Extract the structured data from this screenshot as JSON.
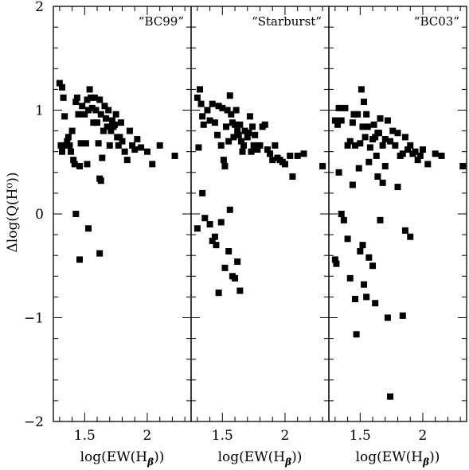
{
  "chart_data": {
    "type": "scatter",
    "layout": "three panels side by side, shared y axis",
    "ylabel": "Δlog(Q(H⁰))",
    "ylim": [
      -2,
      2
    ],
    "yticks": [
      {
        "value": 2,
        "label": "2"
      },
      {
        "value": 1,
        "label": "1"
      },
      {
        "value": 0,
        "label": "0"
      },
      {
        "value": -1,
        "label": "−1"
      },
      {
        "value": -2,
        "label": "−2"
      }
    ],
    "y_minor_step": 0.2,
    "xlabel": {
      "pre": "log(EW(H",
      "sub": "β",
      "post": "))"
    },
    "xlim": [
      1.25,
      2.35
    ],
    "xticks": [
      {
        "value": 1.5,
        "label": "1.5"
      },
      {
        "value": 2,
        "label": "2"
      }
    ],
    "x_minor_step": 0.1,
    "marker": "filled-square",
    "grid": false,
    "panels": [
      {
        "label": "“BC99”",
        "points": [
          [
            1.3,
            1.26
          ],
          [
            1.32,
            1.22
          ],
          [
            1.33,
            1.12
          ],
          [
            1.31,
            0.66
          ],
          [
            1.32,
            0.6
          ],
          [
            1.34,
            0.94
          ],
          [
            1.35,
            0.66
          ],
          [
            1.36,
            0.7
          ],
          [
            1.37,
            0.74
          ],
          [
            1.38,
            0.66
          ],
          [
            1.39,
            0.6
          ],
          [
            1.4,
            0.8
          ],
          [
            1.41,
            0.52
          ],
          [
            1.42,
            0.48
          ],
          [
            1.43,
            1.08
          ],
          [
            1.44,
            1.12
          ],
          [
            1.45,
            0.96
          ],
          [
            1.46,
            0.46
          ],
          [
            1.47,
            0.68
          ],
          [
            1.48,
            1.04
          ],
          [
            1.5,
            0.96
          ],
          [
            1.51,
            0.68
          ],
          [
            1.52,
            1.1
          ],
          [
            1.53,
            1.0
          ],
          [
            1.54,
            1.2
          ],
          [
            1.55,
            1.12
          ],
          [
            1.56,
            1.02
          ],
          [
            1.57,
            0.88
          ],
          [
            1.58,
            1.12
          ],
          [
            1.59,
            1.0
          ],
          [
            1.6,
            0.88
          ],
          [
            1.61,
            0.68
          ],
          [
            1.62,
            1.1
          ],
          [
            1.63,
            0.96
          ],
          [
            1.64,
            0.54
          ],
          [
            1.65,
            0.8
          ],
          [
            1.66,
            1.04
          ],
          [
            1.67,
            0.92
          ],
          [
            1.68,
            0.84
          ],
          [
            1.69,
            1.0
          ],
          [
            1.7,
            0.66
          ],
          [
            1.71,
            0.8
          ],
          [
            1.72,
            0.9
          ],
          [
            1.73,
            0.84
          ],
          [
            1.74,
            0.86
          ],
          [
            1.75,
            0.96
          ],
          [
            1.76,
            0.74
          ],
          [
            1.77,
            0.66
          ],
          [
            1.78,
            0.74
          ],
          [
            1.79,
            0.88
          ],
          [
            1.8,
            0.7
          ],
          [
            1.82,
            0.6
          ],
          [
            1.84,
            0.52
          ],
          [
            1.86,
            0.8
          ],
          [
            1.88,
            0.66
          ],
          [
            1.9,
            0.62
          ],
          [
            1.92,
            0.72
          ],
          [
            1.95,
            0.64
          ],
          [
            2.0,
            0.6
          ],
          [
            2.04,
            0.48
          ],
          [
            2.1,
            0.66
          ],
          [
            2.22,
            0.56
          ],
          [
            1.62,
            0.34
          ],
          [
            1.63,
            0.32
          ],
          [
            1.52,
            0.48
          ],
          [
            1.46,
            -0.44
          ],
          [
            1.43,
            0.0
          ],
          [
            1.53,
            -0.14
          ],
          [
            1.62,
            -0.38
          ]
        ]
      },
      {
        "label": "“Starburst”",
        "points": [
          [
            1.3,
            1.12
          ],
          [
            1.32,
            1.2
          ],
          [
            1.33,
            1.06
          ],
          [
            1.34,
            0.94
          ],
          [
            1.35,
            0.86
          ],
          [
            1.31,
            0.64
          ],
          [
            1.38,
            1.0
          ],
          [
            1.4,
            0.9
          ],
          [
            1.42,
            1.06
          ],
          [
            1.44,
            0.88
          ],
          [
            1.46,
            0.76
          ],
          [
            1.47,
            1.04
          ],
          [
            1.49,
            0.66
          ],
          [
            1.5,
            1.02
          ],
          [
            1.51,
            0.52
          ],
          [
            1.52,
            0.46
          ],
          [
            1.53,
            0.84
          ],
          [
            1.54,
            1.0
          ],
          [
            1.55,
            0.7
          ],
          [
            1.56,
            1.14
          ],
          [
            1.57,
            0.96
          ],
          [
            1.58,
            0.88
          ],
          [
            1.59,
            0.74
          ],
          [
            1.6,
            0.86
          ],
          [
            1.61,
            1.0
          ],
          [
            1.62,
            0.8
          ],
          [
            1.63,
            0.76
          ],
          [
            1.64,
            0.86
          ],
          [
            1.65,
            0.7
          ],
          [
            1.66,
            0.6
          ],
          [
            1.67,
            0.66
          ],
          [
            1.68,
            0.8
          ],
          [
            1.7,
            0.74
          ],
          [
            1.71,
            0.78
          ],
          [
            1.72,
            0.94
          ],
          [
            1.73,
            0.6
          ],
          [
            1.74,
            0.84
          ],
          [
            1.75,
            0.66
          ],
          [
            1.76,
            0.76
          ],
          [
            1.78,
            0.62
          ],
          [
            1.8,
            0.66
          ],
          [
            1.82,
            0.84
          ],
          [
            1.84,
            0.86
          ],
          [
            1.86,
            0.62
          ],
          [
            1.88,
            0.58
          ],
          [
            1.9,
            0.52
          ],
          [
            1.92,
            0.66
          ],
          [
            1.94,
            0.54
          ],
          [
            1.96,
            0.52
          ],
          [
            1.98,
            0.5
          ],
          [
            2.0,
            0.48
          ],
          [
            2.04,
            0.56
          ],
          [
            2.06,
            0.36
          ],
          [
            2.1,
            0.56
          ],
          [
            2.15,
            0.58
          ],
          [
            2.3,
            0.46
          ],
          [
            1.3,
            -0.14
          ],
          [
            1.34,
            0.2
          ],
          [
            1.36,
            -0.04
          ],
          [
            1.4,
            -0.1
          ],
          [
            1.42,
            -0.26
          ],
          [
            1.44,
            -0.22
          ],
          [
            1.45,
            -0.3
          ],
          [
            1.47,
            -0.76
          ],
          [
            1.49,
            -0.08
          ],
          [
            1.52,
            -0.52
          ],
          [
            1.55,
            -0.36
          ],
          [
            1.56,
            0.04
          ],
          [
            1.58,
            -0.6
          ],
          [
            1.6,
            -0.62
          ],
          [
            1.62,
            -0.46
          ],
          [
            1.64,
            -0.74
          ]
        ]
      },
      {
        "label": "“BC03”",
        "points": [
          [
            1.3,
            0.9
          ],
          [
            1.32,
            0.86
          ],
          [
            1.33,
            1.02
          ],
          [
            1.35,
            0.9
          ],
          [
            1.38,
            1.02
          ],
          [
            1.4,
            0.66
          ],
          [
            1.42,
            0.7
          ],
          [
            1.44,
            0.88
          ],
          [
            1.45,
            0.96
          ],
          [
            1.46,
            0.66
          ],
          [
            1.48,
            0.96
          ],
          [
            1.5,
            0.68
          ],
          [
            1.51,
            1.2
          ],
          [
            1.52,
            0.84
          ],
          [
            1.53,
            1.08
          ],
          [
            1.54,
            0.74
          ],
          [
            1.55,
            0.96
          ],
          [
            1.56,
            0.84
          ],
          [
            1.57,
            0.5
          ],
          [
            1.58,
            0.64
          ],
          [
            1.6,
            0.72
          ],
          [
            1.61,
            0.86
          ],
          [
            1.62,
            0.74
          ],
          [
            1.63,
            0.56
          ],
          [
            1.64,
            0.78
          ],
          [
            1.65,
            0.78
          ],
          [
            1.66,
            0.92
          ],
          [
            1.68,
            0.66
          ],
          [
            1.7,
            0.72
          ],
          [
            1.72,
            0.9
          ],
          [
            1.74,
            0.7
          ],
          [
            1.76,
            0.8
          ],
          [
            1.78,
            0.66
          ],
          [
            1.8,
            0.78
          ],
          [
            1.82,
            0.56
          ],
          [
            1.84,
            0.58
          ],
          [
            1.86,
            0.74
          ],
          [
            1.88,
            0.62
          ],
          [
            1.9,
            0.66
          ],
          [
            1.92,
            0.58
          ],
          [
            1.94,
            0.6
          ],
          [
            1.96,
            0.52
          ],
          [
            1.98,
            0.56
          ],
          [
            2.0,
            0.62
          ],
          [
            2.04,
            0.48
          ],
          [
            2.1,
            0.58
          ],
          [
            2.15,
            0.56
          ],
          [
            2.32,
            0.46
          ],
          [
            1.3,
            -0.44
          ],
          [
            1.31,
            -0.48
          ],
          [
            1.33,
            0.4
          ],
          [
            1.35,
            0.0
          ],
          [
            1.37,
            -0.06
          ],
          [
            1.4,
            -0.24
          ],
          [
            1.42,
            -0.62
          ],
          [
            1.44,
            0.28
          ],
          [
            1.46,
            -0.82
          ],
          [
            1.47,
            -1.16
          ],
          [
            1.49,
            0.44
          ],
          [
            1.5,
            -0.36
          ],
          [
            1.52,
            -0.3
          ],
          [
            1.53,
            -0.68
          ],
          [
            1.55,
            -0.8
          ],
          [
            1.57,
            -0.42
          ],
          [
            1.6,
            -0.5
          ],
          [
            1.62,
            -0.86
          ],
          [
            1.64,
            0.36
          ],
          [
            1.66,
            -0.06
          ],
          [
            1.68,
            0.3
          ],
          [
            1.7,
            0.46
          ],
          [
            1.72,
            -1.0
          ],
          [
            1.74,
            -1.76
          ],
          [
            1.8,
            0.26
          ],
          [
            1.84,
            -0.98
          ],
          [
            1.86,
            -0.16
          ],
          [
            1.9,
            -0.22
          ]
        ]
      }
    ]
  }
}
